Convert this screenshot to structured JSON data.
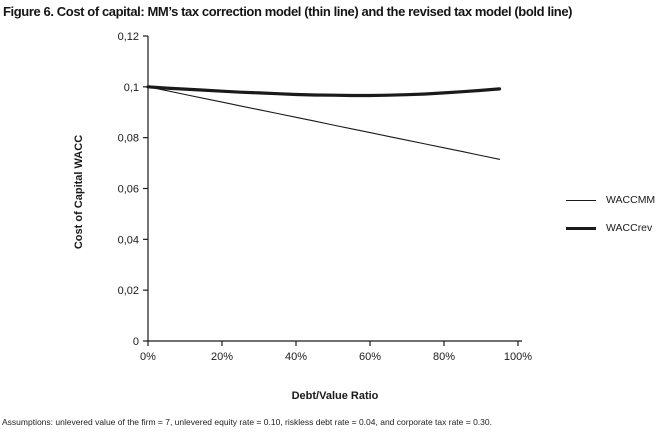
{
  "colors": {
    "ink": "#1a1a1a",
    "background": "#ffffff"
  },
  "chart_data": {
    "type": "line",
    "title": "Figure 6. Cost of capital: MM’s tax correction model (thin line) and the revised tax model (bold line)",
    "xlabel": "Debt/Value Ratio",
    "ylabel": "Cost of Capital WACC",
    "footnote": "Assumptions: unlevered value of the firm = 7, unlevered equity rate = 0.10, riskless debt rate = 0.04, and corporate tax rate = 0.30.",
    "xlim": [
      0,
      1
    ],
    "ylim": [
      0,
      0.12
    ],
    "grid": false,
    "legend_position": "right",
    "x_ticks": [
      {
        "value": 0,
        "label": "0%"
      },
      {
        "value": 0.2,
        "label": "20%"
      },
      {
        "value": 0.4,
        "label": "40%"
      },
      {
        "value": 0.6,
        "label": "60%"
      },
      {
        "value": 0.8,
        "label": "80%"
      },
      {
        "value": 1.0,
        "label": "100%"
      }
    ],
    "y_ticks": [
      {
        "value": 0,
        "label": "0"
      },
      {
        "value": 0.02,
        "label": "0,02"
      },
      {
        "value": 0.04,
        "label": "0,04"
      },
      {
        "value": 0.06,
        "label": "0,06"
      },
      {
        "value": 0.08,
        "label": "0,08"
      },
      {
        "value": 0.1,
        "label": "0,1"
      },
      {
        "value": 0.12,
        "label": "0,12"
      }
    ],
    "x": [
      0,
      0.05,
      0.1,
      0.15,
      0.2,
      0.25,
      0.3,
      0.35,
      0.4,
      0.45,
      0.5,
      0.55,
      0.6,
      0.65,
      0.7,
      0.75,
      0.8,
      0.85,
      0.9,
      0.95
    ],
    "series": [
      {
        "name": "WACCMM",
        "style": "thin",
        "values": [
          0.1,
          0.0985,
          0.097,
          0.0955,
          0.094,
          0.0925,
          0.091,
          0.0895,
          0.088,
          0.0865,
          0.085,
          0.0835,
          0.082,
          0.0805,
          0.079,
          0.0775,
          0.076,
          0.0745,
          0.073,
          0.0715
        ]
      },
      {
        "name": "WACCrev",
        "style": "bold",
        "values": [
          0.1,
          0.0995,
          0.0991,
          0.0987,
          0.0983,
          0.0979,
          0.0976,
          0.0973,
          0.097,
          0.0968,
          0.0967,
          0.0966,
          0.0966,
          0.0967,
          0.0969,
          0.0972,
          0.0976,
          0.0981,
          0.0986,
          0.0992
        ]
      }
    ]
  }
}
